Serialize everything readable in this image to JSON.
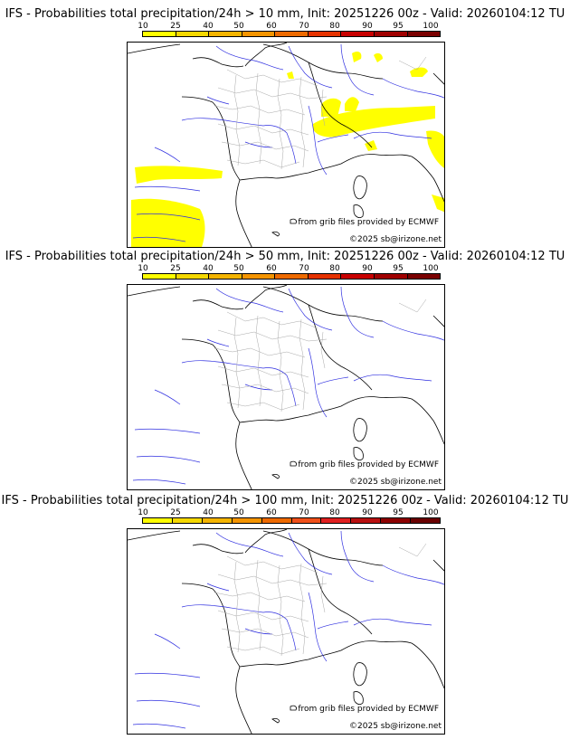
{
  "scale": {
    "labels": [
      "10",
      "25",
      "40",
      "50",
      "60",
      "70",
      "80",
      "90",
      "95",
      "100"
    ],
    "colors_short": [
      "#ffff00",
      "#f5d800",
      "#f4b400",
      "#f49400",
      "#ee6a00",
      "#e63200",
      "#c80000",
      "#a00000",
      "#7a0000"
    ],
    "colors_long": [
      "#ffff00",
      "#f5d800",
      "#f4b400",
      "#f49400",
      "#ee6a00",
      "#f0501a",
      "#e02020",
      "#b81010",
      "#8c0000",
      "#6a0000"
    ]
  },
  "panels": [
    {
      "title": "IFS - Probabilities total precipitation/24h > 10 mm, Init: 20251226 00z - Valid: 20260104:12 TU",
      "credit_source": "from grib files provided by ECMWF",
      "credit_copy": "©2025 sb@irizone.net",
      "has_precip": true
    },
    {
      "title": "IFS - Probabilities total precipitation/24h > 50 mm, Init: 20251226 00z - Valid: 20260104:12 TU",
      "credit_source": "from grib files provided by ECMWF",
      "credit_copy": "©2025 sb@irizone.net",
      "has_precip": false
    },
    {
      "title": "IFS - Probabilities total precipitation/24h > 100 mm, Init: 20251226 00z - Valid: 20260104:12 TU",
      "credit_source": "from grib files provided by ECMWF",
      "credit_copy": "©2025 sb@irizone.net",
      "has_precip": false
    }
  ]
}
